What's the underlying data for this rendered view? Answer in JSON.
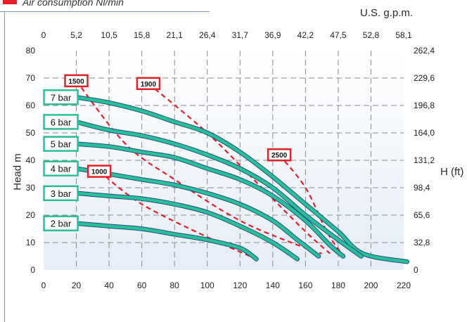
{
  "legend": {
    "label": "Air consumption Nl/min",
    "color": "#e41e26"
  },
  "axes": {
    "top_unit": "U.S. g.p.m.",
    "right_unit": "H (ft)",
    "left_unit": "Head m"
  },
  "colors": {
    "curve": "#2bbf96",
    "curve_edge": "#1d4f8c",
    "air_line": "#e41e26",
    "grid": "#8a8a8a",
    "label_box_green": "#2bbf96",
    "label_box_red": "#e41e26"
  },
  "chart_data": {
    "type": "line",
    "x_bottom": {
      "ticks": [
        0,
        20,
        40,
        60,
        80,
        100,
        120,
        140,
        160,
        180,
        200,
        220
      ],
      "range": [
        0,
        220
      ]
    },
    "x_top": {
      "ticks": [
        "0",
        "5,2",
        "10,5",
        "15,8",
        "21,1",
        "26,4",
        "31,7",
        "36,9",
        "42,2",
        "47,5",
        "52,8",
        "58,1"
      ]
    },
    "y_left": {
      "ticks": [
        0,
        10,
        20,
        30,
        40,
        50,
        60,
        70,
        80
      ],
      "range": [
        0,
        80
      ]
    },
    "y_right": {
      "ticks": [
        "0",
        "32,8",
        "65,6",
        "98,4",
        "131,2",
        "164,0",
        "196,8",
        "229,6",
        "262,4"
      ]
    },
    "grid": true,
    "series": [
      {
        "name": "7 bar",
        "points": [
          [
            20,
            63
          ],
          [
            40,
            61
          ],
          [
            60,
            58
          ],
          [
            80,
            54
          ],
          [
            100,
            50
          ],
          [
            120,
            43
          ],
          [
            140,
            34
          ],
          [
            160,
            24
          ],
          [
            180,
            14
          ],
          [
            195,
            6
          ],
          [
            222,
            3
          ]
        ]
      },
      {
        "name": "6 bar",
        "points": [
          [
            20,
            54
          ],
          [
            40,
            51
          ],
          [
            60,
            49
          ],
          [
            80,
            46
          ],
          [
            100,
            42
          ],
          [
            120,
            37
          ],
          [
            140,
            30
          ],
          [
            160,
            20
          ],
          [
            180,
            11
          ],
          [
            194,
            5
          ]
        ]
      },
      {
        "name": "5 bar",
        "points": [
          [
            20,
            46
          ],
          [
            40,
            45
          ],
          [
            60,
            43
          ],
          [
            80,
            41
          ],
          [
            100,
            37
          ],
          [
            120,
            33
          ],
          [
            140,
            27
          ],
          [
            160,
            18
          ],
          [
            175,
            9
          ],
          [
            183,
            5
          ]
        ]
      },
      {
        "name": "4 bar",
        "points": [
          [
            20,
            37
          ],
          [
            40,
            35
          ],
          [
            60,
            33
          ],
          [
            80,
            31
          ],
          [
            100,
            28
          ],
          [
            120,
            24
          ],
          [
            140,
            18
          ],
          [
            155,
            11
          ],
          [
            168,
            5
          ]
        ]
      },
      {
        "name": "3 bar",
        "points": [
          [
            20,
            28
          ],
          [
            40,
            27
          ],
          [
            60,
            26
          ],
          [
            80,
            24
          ],
          [
            100,
            21
          ],
          [
            120,
            16
          ],
          [
            140,
            10
          ],
          [
            155,
            4
          ]
        ]
      },
      {
        "name": "2 bar",
        "points": [
          [
            20,
            17
          ],
          [
            40,
            16
          ],
          [
            60,
            15
          ],
          [
            80,
            13
          ],
          [
            100,
            11
          ],
          [
            120,
            8
          ],
          [
            130,
            4
          ]
        ]
      }
    ],
    "air_lines": [
      {
        "label": "1000",
        "points": [
          [
            34,
            36
          ],
          [
            60,
            24
          ],
          [
            100,
            12
          ],
          [
            130,
            4
          ]
        ]
      },
      {
        "label": "1500",
        "points": [
          [
            20,
            69
          ],
          [
            50,
            46
          ],
          [
            80,
            33
          ],
          [
            120,
            18
          ],
          [
            160,
            8
          ],
          [
            170,
            6
          ]
        ]
      },
      {
        "label": "1900",
        "points": [
          [
            64,
            68
          ],
          [
            100,
            50
          ],
          [
            130,
            32
          ],
          [
            160,
            14
          ],
          [
            175,
            6
          ]
        ]
      },
      {
        "label": "2500",
        "points": [
          [
            144,
            42
          ],
          [
            160,
            30
          ],
          [
            173,
            14
          ],
          [
            182,
            6
          ]
        ]
      }
    ],
    "curve_labels": [
      "7 bar",
      "6 bar",
      "5 bar",
      "4 bar",
      "3 bar",
      "2 bar"
    ],
    "air_labels": [
      "1500",
      "1900",
      "2500",
      "1000"
    ]
  }
}
